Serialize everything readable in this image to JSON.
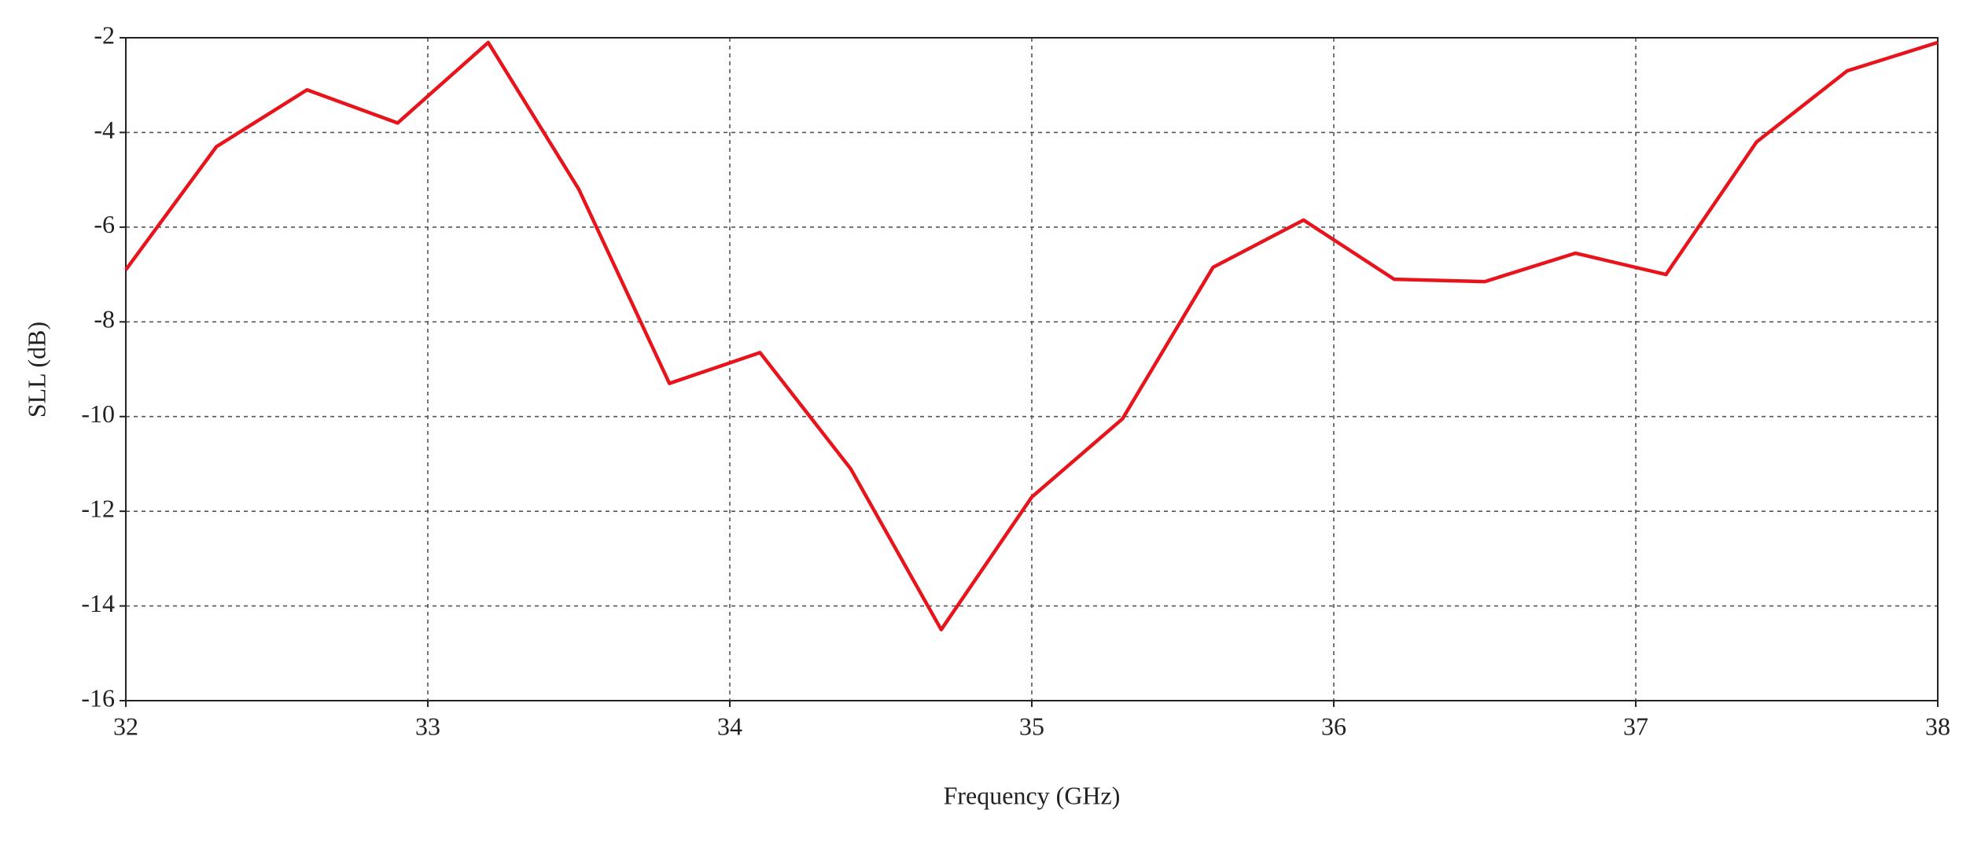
{
  "chart_data": {
    "type": "line",
    "xlabel": "Frequency (GHz)",
    "ylabel": "SLL (dB)",
    "x": [
      32,
      32.3,
      32.6,
      32.9,
      33.2,
      33.5,
      33.8,
      34.1,
      34.4,
      34.7,
      35,
      35.3,
      35.6,
      35.9,
      36.2,
      36.5,
      36.8,
      37.1,
      37.4,
      37.7,
      38
    ],
    "series": [
      {
        "color": "#e8141c",
        "values": [
          -6.9,
          -4.3,
          -3.1,
          -3.8,
          -2.1,
          -5.2,
          -9.3,
          -8.65,
          -11.1,
          -14.5,
          -11.7,
          -10.05,
          -6.85,
          -5.85,
          -7.1,
          -7.15,
          -6.55,
          -7.0,
          -4.2,
          -2.7,
          -2.1
        ]
      }
    ],
    "xlim": [
      32,
      38
    ],
    "xticks": [
      32,
      33,
      34,
      35,
      36,
      37,
      38
    ],
    "ylim": [
      -16,
      -2
    ],
    "yticks": [
      -16,
      -14,
      -12,
      -10,
      -8,
      -6,
      -4,
      -2
    ],
    "grid": true
  }
}
